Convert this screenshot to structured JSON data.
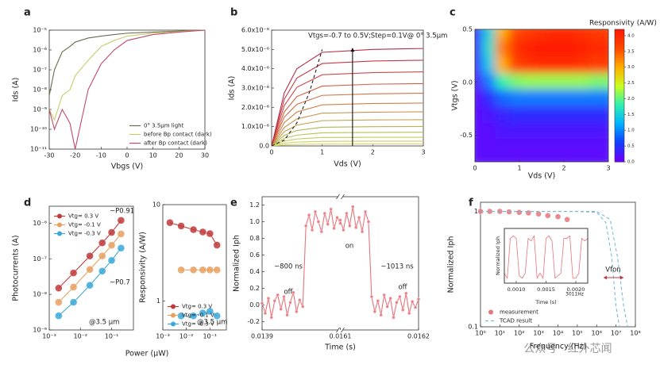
{
  "chart_data": [
    {
      "type": "line",
      "panel_label": "a",
      "xlabel": "Vbgs (V)",
      "ylabel": "Ids (A)",
      "ylog": true,
      "xlim": [
        -30,
        30
      ],
      "ylim": [
        1e-11,
        1e-05
      ],
      "xticks": [
        -30,
        -20,
        -10,
        0,
        10,
        20,
        30
      ],
      "yticks": [
        {
          "value": 1e-11,
          "label": "10⁻¹¹"
        },
        {
          "value": 1e-10,
          "label": "10⁻¹⁰"
        },
        {
          "value": 1e-09,
          "label": "10⁻⁹"
        },
        {
          "value": 1e-08,
          "label": "10⁻⁸"
        },
        {
          "value": 1e-07,
          "label": "10⁻⁷"
        },
        {
          "value": 1e-06,
          "label": "10⁻⁶"
        },
        {
          "value": 1e-05,
          "label": "10⁻⁵"
        }
      ],
      "legend": "lower right",
      "x": [
        -30,
        -28,
        -25,
        -22,
        -20,
        -15,
        -10,
        -5,
        0,
        10,
        20,
        30
      ],
      "series": [
        {
          "name": "0° 3.5μm light",
          "color": "#6b6b4e",
          "values": [
            5e-09,
            1e-07,
            8e-07,
            1.5e-06,
            2.5e-06,
            4e-06,
            5e-06,
            6e-06,
            7e-06,
            8e-06,
            9e-06,
            1e-05
          ]
        },
        {
          "name": "before Bp contact (dark)",
          "color": "#c9cc6a",
          "values": [
            1e-09,
            3e-10,
            5e-09,
            1e-08,
            5e-08,
            3e-07,
            1.5e-06,
            3e-06,
            5e-06,
            7e-06,
            8.5e-06,
            1e-05
          ]
        },
        {
          "name": "after Bp contact (dark)",
          "color": "#c04a6a",
          "values": [
            1e-09,
            1e-10,
            1e-09,
            2e-10,
            1e-11,
            1e-08,
            2e-07,
            1e-06,
            3e-06,
            6e-06,
            8e-06,
            1e-05
          ]
        }
      ]
    },
    {
      "type": "line",
      "panel_label": "b",
      "xlabel": "Vds (V)",
      "ylabel": "Ids (A)",
      "xlim": [
        0,
        3
      ],
      "ylim": [
        0,
        6e-06
      ],
      "xticks": [
        0,
        1,
        2,
        3
      ],
      "yticks": [
        {
          "value": 0,
          "label": "0.0"
        },
        {
          "value": 1e-06,
          "label": "1.0x10⁻⁶"
        },
        {
          "value": 2e-06,
          "label": "2.0x10⁻⁶"
        },
        {
          "value": 3e-06,
          "label": "3.0x10⁻⁶"
        },
        {
          "value": 4e-06,
          "label": "4.0x10⁻⁶"
        },
        {
          "value": 5e-06,
          "label": "5.0x10⁻⁶"
        },
        {
          "value": 6e-06,
          "label": "6.0x10⁻⁶"
        }
      ],
      "annotations": [
        "Vtgs=-0.7 to 0.5V;Step=0.1V@ 0° 3.5μm"
      ],
      "vline_x": 1.6,
      "x": [
        0,
        0.25,
        0.5,
        1,
        2,
        3
      ],
      "series": [
        {
          "color": "#d9d56a",
          "values": [
            0,
            5.5e-08,
            8e-08,
            9.7e-08,
            1e-07,
            1.01e-07
          ]
        },
        {
          "color": "#cfd060",
          "values": [
            0,
            1.4e-07,
            2e-07,
            2.4e-07,
            2.5e-07,
            2.5e-07
          ]
        },
        {
          "color": "#c6c85a",
          "values": [
            0,
            2.5e-07,
            3.6e-07,
            4.4e-07,
            4.5e-07,
            4.5e-07
          ]
        },
        {
          "color": "#bfbf55",
          "values": [
            0,
            3.9e-07,
            5.6e-07,
            6.8e-07,
            7e-07,
            7.1e-07
          ]
        },
        {
          "color": "#b9b250",
          "values": [
            0,
            5.5e-07,
            8e-07,
            9.7e-07,
            1e-06,
            1.01e-06
          ]
        },
        {
          "color": "#c2a24c",
          "values": [
            0,
            7.4e-07,
            1.08e-06,
            1.31e-06,
            1.35e-06,
            1.36e-06
          ]
        },
        {
          "color": "#c9924a",
          "values": [
            0,
            9.6e-07,
            1.4e-06,
            1.7e-06,
            1.75e-06,
            1.77e-06
          ]
        },
        {
          "color": "#cf8248",
          "values": [
            0,
            1.21e-06,
            1.76e-06,
            2.13e-06,
            2.2e-06,
            2.22e-06
          ]
        },
        {
          "color": "#d47047",
          "values": [
            0,
            1.49e-06,
            2.16e-06,
            2.62e-06,
            2.7e-06,
            2.73e-06
          ]
        },
        {
          "color": "#d95e47",
          "values": [
            0,
            1.76e-06,
            2.56e-06,
            3.1e-06,
            3.2e-06,
            3.23e-06
          ]
        },
        {
          "color": "#d04a48",
          "values": [
            0,
            2.09e-06,
            3.04e-06,
            3.69e-06,
            3.8e-06,
            3.84e-06
          ]
        },
        {
          "color": "#c23a46",
          "values": [
            0,
            2.42e-06,
            3.52e-06,
            4.27e-06,
            4.4e-06,
            4.44e-06
          ]
        },
        {
          "color": "#b52d45",
          "values": [
            0,
            2.75e-06,
            4e-06,
            4.85e-06,
            5e-06,
            5.05e-06
          ]
        },
        {
          "color": "#222222",
          "dash": true,
          "x": [
            0,
            0.25,
            0.5,
            0.75,
            1
          ],
          "values": [
            0,
            3e-07,
            1.2e-06,
            2.8e-06,
            5e-06
          ]
        }
      ]
    },
    {
      "type": "heatmap",
      "panel_label": "c",
      "xlabel": "Vds (V)",
      "ylabel": "Vtgs (V)",
      "colorbar_title": "Responsivity (A/W)",
      "xlim": [
        0,
        3
      ],
      "ylim": [
        -0.75,
        0.5
      ],
      "xticks": [
        0,
        1,
        2,
        3
      ],
      "yticks": [
        -0.5,
        {
          "value": 0,
          "label": "0.0"
        },
        0.5
      ],
      "zlim": [
        0,
        4.2
      ],
      "cticks": [
        {
          "value": 0,
          "label": "0.0"
        },
        0.5,
        {
          "value": 1,
          "label": "1.0"
        },
        1.5,
        {
          "value": 2,
          "label": "2.0"
        },
        2.5,
        {
          "value": 3,
          "label": "3.0"
        },
        3.5,
        {
          "value": 4,
          "label": "4.0"
        }
      ],
      "colormap": [
        "#6a00ff",
        "#1040ff",
        "#00b4ff",
        "#30f0b0",
        "#c8ff20",
        "#ffb000",
        "#ff4a00",
        "#ff1a00"
      ],
      "x": [
        0.15,
        0.45,
        0.75,
        1.05,
        1.35,
        1.65,
        1.95,
        2.25,
        2.55,
        2.85
      ],
      "y": [
        0.42,
        0.27,
        0.11,
        -0.05,
        -0.2,
        -0.36,
        -0.52,
        -0.67
      ],
      "z": [
        [
          0.3,
          1.5,
          3.0,
          3.6,
          3.8,
          3.9,
          4.0,
          4.0,
          3.9,
          3.8
        ],
        [
          0.3,
          1.6,
          3.3,
          3.9,
          4.1,
          4.2,
          4.2,
          4.2,
          4.1,
          4.0
        ],
        [
          0.3,
          1.4,
          3.0,
          3.7,
          3.9,
          4.0,
          4.0,
          4.0,
          3.9,
          3.8
        ],
        [
          0.2,
          0.9,
          1.8,
          2.1,
          2.2,
          2.2,
          2.2,
          2.2,
          2.2,
          2.1
        ],
        [
          0.1,
          0.4,
          0.8,
          0.9,
          0.9,
          0.9,
          0.9,
          0.9,
          0.9,
          0.9
        ],
        [
          0.1,
          0.2,
          0.3,
          0.4,
          0.4,
          0.4,
          0.4,
          0.4,
          0.4,
          0.4
        ],
        [
          0.1,
          0.1,
          0.2,
          0.2,
          0.2,
          0.2,
          0.2,
          0.2,
          0.2,
          0.2
        ],
        [
          0.1,
          0.1,
          0.1,
          0.1,
          0.1,
          0.1,
          0.1,
          0.1,
          0.1,
          0.1
        ]
      ]
    },
    {
      "type": "line",
      "panel_label": "d",
      "xlabel": "Power (μW)",
      "ylabel": "Photocurrents (A)",
      "xlog": true,
      "ylog": true,
      "xlim": [
        0.001,
        0.5
      ],
      "ylim": [
        1e-09,
        3e-06
      ],
      "xticks": [
        {
          "value": 0.001,
          "label": "10⁻³"
        },
        {
          "value": 0.01,
          "label": "10⁻²"
        },
        {
          "value": 0.1,
          "label": "10⁻¹"
        }
      ],
      "yticks": [
        {
          "value": 1e-09,
          "label": "10⁻⁹"
        },
        {
          "value": 1e-08,
          "label": "10⁻⁸"
        },
        {
          "value": 1e-07,
          "label": "10⁻⁷"
        },
        {
          "value": 1e-06,
          "label": "10⁻⁶"
        }
      ],
      "legend": "upper left",
      "annotations": [
        "~P0.91",
        "~P0.7",
        "@3.5 μm"
      ],
      "x": [
        0.002,
        0.006,
        0.02,
        0.05,
        0.1,
        0.2
      ],
      "series": [
        {
          "name": "Vtg= 0.3 V",
          "color": "#c0393b",
          "marker": true,
          "values": [
            1.5e-08,
            4e-08,
            1.2e-07,
            2.8e-07,
            5.5e-07,
            1.2e-06
          ]
        },
        {
          "name": "Vtg= -0.1 V",
          "color": "#e8a060",
          "marker": true,
          "values": [
            6e-09,
            1.6e-08,
            5e-08,
            1.2e-07,
            2.4e-07,
            5e-07
          ]
        },
        {
          "name": "Vtg= -0.3 V",
          "color": "#3aa8d8",
          "marker": true,
          "values": [
            2.5e-09,
            6e-09,
            1.8e-08,
            4.5e-08,
            9e-08,
            2e-07
          ]
        }
      ]
    },
    {
      "type": "line",
      "ylabel": "Responsivity (A/W)",
      "xlog": true,
      "ylog": true,
      "xlim": [
        0.001,
        0.5
      ],
      "ylim": [
        0.5,
        10
      ],
      "xticks": [
        {
          "value": 0.001,
          "label": "10⁻³"
        },
        {
          "value": 0.01,
          "label": "10⁻²"
        },
        {
          "value": 0.1,
          "label": "10⁻¹"
        }
      ],
      "yticks": [
        1,
        10
      ],
      "legend": "lower left",
      "annotations": [
        "@3.5 μm"
      ],
      "x": [
        0.002,
        0.006,
        0.02,
        0.05,
        0.1,
        0.2
      ],
      "series": [
        {
          "name": "Vtg= 0.3 V",
          "color": "#c0393b",
          "marker": true,
          "values": [
            6.5,
            6,
            5.5,
            5.2,
            5.0,
            3.8
          ]
        },
        {
          "name": "Vtg= -0.1 V",
          "color": "#e8a060",
          "marker": true,
          "values": [
            null,
            2.1,
            2.1,
            2.1,
            2.1,
            2.1
          ]
        },
        {
          "name": "Vtg= -0.3 V",
          "color": "#3aa8d8",
          "marker": true,
          "values": [
            null,
            0.7,
            0.7,
            0.75,
            0.78,
            0.7
          ]
        }
      ]
    },
    {
      "type": "line",
      "panel_label": "e",
      "xlabel": "Time (s)",
      "ylabel": "Normalized Iph",
      "xsegments": [
        [
          0.0139,
          0.014
        ],
        [
          0.0161,
          0.0162
        ]
      ],
      "ylim": [
        -0.3,
        1.3
      ],
      "xticks": [
        0.0139,
        0.0161,
        0.0162
      ],
      "yticks": [
        -0.2,
        {
          "value": 0,
          "label": "0.0"
        },
        0.2,
        0.4,
        0.6,
        0.8,
        {
          "value": 1,
          "label": "1.0"
        },
        1.2
      ],
      "annotations": [
        "~800 ns",
        "off",
        "on",
        "~1013 ns",
        "off"
      ],
      "series": [
        {
          "color": "#e8747c",
          "marker": true,
          "x": [
            0.0139,
            0.013904,
            0.013908,
            0.013912,
            0.013916,
            0.01392,
            0.013924,
            0.013928,
            0.013932,
            0.013936,
            0.01394,
            0.013944,
            0.013948,
            0.013952,
            0.013956,
            0.01396,
            0.013964,
            0.013968,
            0.013972,
            0.013976,
            0.01398,
            0.013984,
            0.013988,
            0.013992,
            0.013996,
            0.014,
            0.0161,
            0.016104,
            0.016108,
            0.016112,
            0.016116,
            0.01612,
            0.016124,
            0.016128,
            0.016132,
            0.016136,
            0.01614,
            0.016144,
            0.016148,
            0.016152,
            0.016156,
            0.01616,
            0.016164,
            0.016168,
            0.016172,
            0.016176,
            0.01618,
            0.016184,
            0.016188,
            0.016192,
            0.016196,
            0.0162
          ],
          "values": [
            0.02,
            -0.1,
            0.08,
            -0.15,
            0.05,
            0.12,
            -0.05,
            0.1,
            -0.12,
            0.03,
            0.15,
            -0.08,
            0.06,
            -0.02,
            0.95,
            1.08,
            0.9,
            1.12,
            1.0,
            0.88,
            1.1,
            0.97,
            1.15,
            0.92,
            1.05,
            0.98,
            1.02,
            0.9,
            1.1,
            0.95,
            1.18,
            0.93,
            1.05,
            0.88,
            1.12,
            1.0,
            0.1,
            -0.08,
            0.05,
            -0.12,
            0.12,
            -0.02,
            0.08,
            -0.15,
            0.03,
            0.1,
            -0.06,
            0.14,
            -0.1,
            0.04,
            -0.03,
            0.07
          ]
        }
      ]
    },
    {
      "type": "line",
      "panel_label": "f",
      "xlabel": "Frequency (Hz)",
      "ylabel": "Normalized Iph",
      "xlog": true,
      "ylog": true,
      "xlim": [
        1,
        100000000
      ],
      "ylim": [
        0.1,
        1.2
      ],
      "xticks": [
        {
          "value": 1,
          "label": "10⁰"
        },
        {
          "value": 10,
          "label": "10¹"
        },
        {
          "value": 100,
          "label": "10²"
        },
        {
          "value": 1000,
          "label": "10³"
        },
        {
          "value": 10000,
          "label": "10⁴"
        },
        {
          "value": 100000,
          "label": "10⁵"
        },
        {
          "value": 1000000,
          "label": "10⁶"
        },
        {
          "value": 10000000,
          "label": "10⁷"
        },
        {
          "value": 100000000,
          "label": "10⁸"
        }
      ],
      "yticks": [
        0.1,
        1
      ],
      "legend": "lower left",
      "annotations": [
        "Vfon"
      ],
      "series": [
        {
          "name": "measurement",
          "color": "#e8747c",
          "marker": true,
          "line": false,
          "x": [
            1,
            3,
            10,
            30,
            100,
            300,
            1000,
            3000,
            10000,
            30000
          ],
          "values": [
            1,
            1,
            1,
            0.99,
            0.98,
            0.97,
            0.95,
            0.92,
            0.9,
            0.85
          ]
        },
        {
          "name": "TCAD result",
          "color": "#7ab8d8",
          "dash": true,
          "x": [
            1,
            100000,
            1000000,
            3000000,
            6000000,
            10000000,
            15000000
          ],
          "values": [
            1,
            1,
            0.98,
            0.8,
            0.4,
            0.15,
            0.1
          ]
        },
        {
          "color": "#7ab8d8",
          "dash": true,
          "x": [
            1,
            100000,
            1000000,
            5000000,
            12000000,
            25000000,
            40000000
          ],
          "values": [
            1,
            1,
            1,
            0.85,
            0.4,
            0.15,
            0.1
          ]
        }
      ]
    },
    {
      "type": "line",
      "xlabel": "Time (s)",
      "ylabel": "Normalized Iph",
      "xlim": [
        0.0008,
        0.0022
      ],
      "ylim": [
        0,
        1.1
      ],
      "xticks": [
        {
          "value": 0.001,
          "label": "0.0010"
        },
        0.0015,
        {
          "value": 0.002,
          "label": "0.0020"
        }
      ],
      "annotations": [
        "3011Hz"
      ],
      "x": [
        0.0008,
        0.00085,
        0.0009,
        0.00095,
        0.001,
        0.00105,
        0.0011,
        0.00115,
        0.0012,
        0.00125,
        0.0013,
        0.00135,
        0.0014,
        0.00145,
        0.0015,
        0.00155,
        0.0016,
        0.00165,
        0.0017,
        0.00175,
        0.0018,
        0.00185,
        0.0019,
        0.00195,
        0.002,
        0.00205,
        0.0021,
        0.00215,
        0.0022
      ],
      "series": [
        {
          "color": "#e8747c",
          "values": [
            0.2,
            0.1,
            0.9,
            0.95,
            0.9,
            0.15,
            0.1,
            0.2,
            0.9,
            0.85,
            0.95,
            0.1,
            0.2,
            0.1,
            0.9,
            0.95,
            0.85,
            0.1,
            0.15,
            0.2,
            0.9,
            0.9,
            0.95,
            0.1,
            0.1,
            0.2,
            0.9,
            0.85,
            0.9
          ]
        }
      ]
    }
  ],
  "watermark": "公众号 · 红外芯闻"
}
